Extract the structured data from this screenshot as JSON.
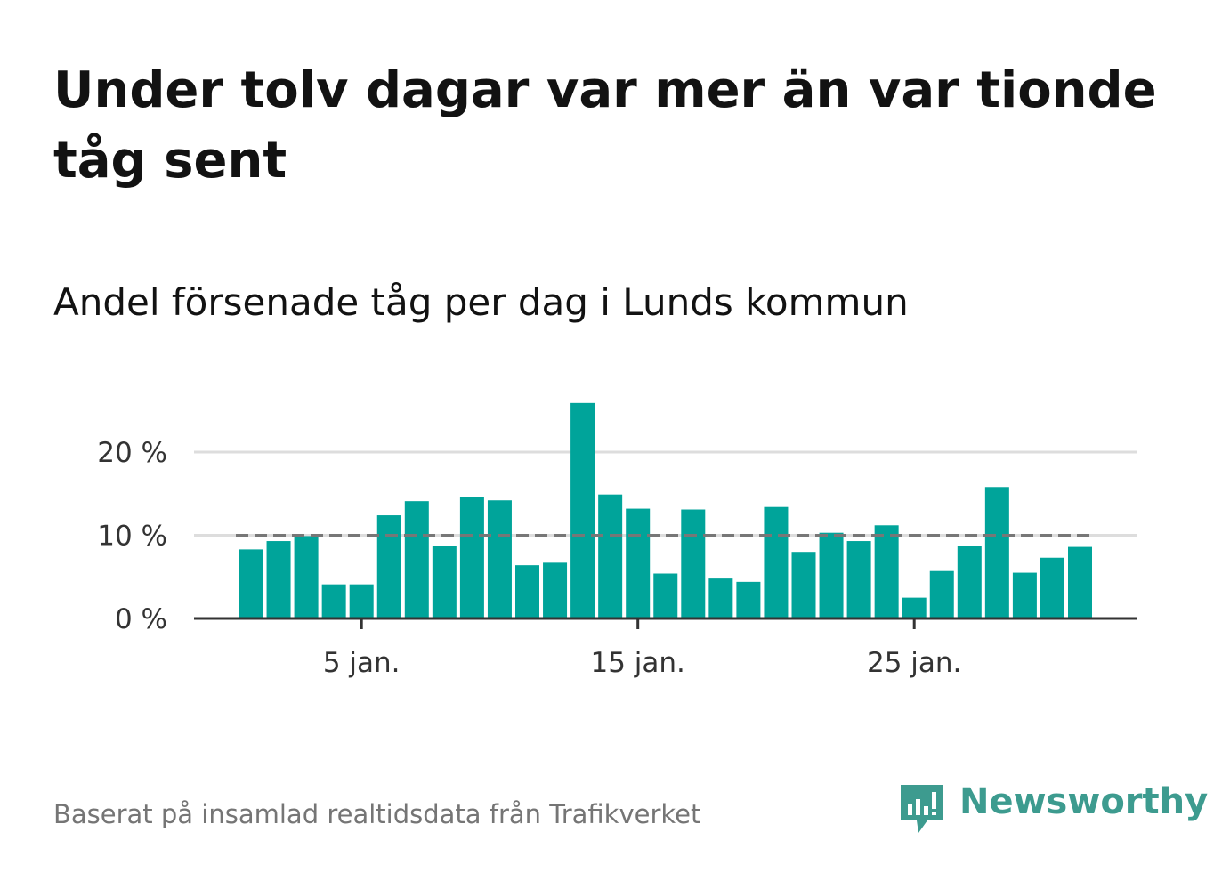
{
  "title": "Under tolv dagar var mer än var tionde tåg sent",
  "subtitle": "Andel försenade tåg per dag i Lunds kommun",
  "source": "Baserat på insamlad realtidsdata från Trafikverket",
  "logo": {
    "text": "Newsworthy",
    "icon": "newsworthy-logo-icon"
  },
  "colors": {
    "bar": "#00a49a",
    "reference_line": "#777777",
    "grid": "#dddddd",
    "axis": "#333333",
    "logo": "#3d9b8f"
  },
  "chart_data": {
    "type": "bar",
    "x": [
      1,
      2,
      3,
      4,
      5,
      6,
      7,
      8,
      9,
      10,
      11,
      12,
      13,
      14,
      15,
      16,
      17,
      18,
      19,
      20,
      21,
      22,
      23,
      24,
      25,
      26,
      27,
      28,
      29,
      30,
      31
    ],
    "values": [
      8.3,
      9.3,
      9.9,
      4.1,
      4.1,
      12.4,
      14.1,
      8.7,
      14.6,
      14.2,
      6.4,
      6.7,
      25.9,
      14.9,
      13.2,
      5.4,
      13.1,
      4.8,
      4.4,
      13.4,
      8.0,
      10.3,
      9.3,
      11.2,
      2.5,
      5.7,
      8.7,
      15.8,
      5.5,
      7.3,
      8.6
    ],
    "xticks": [
      {
        "value": 5,
        "label": "5 jan."
      },
      {
        "value": 15,
        "label": "15 jan."
      },
      {
        "value": 25,
        "label": "25 jan."
      }
    ],
    "yticks": [
      {
        "value": 0,
        "label": "0 %"
      },
      {
        "value": 10,
        "label": "10 %"
      },
      {
        "value": 20,
        "label": "20 %"
      }
    ],
    "ylim": [
      0,
      27
    ],
    "reference_line": 10,
    "grid": true
  }
}
